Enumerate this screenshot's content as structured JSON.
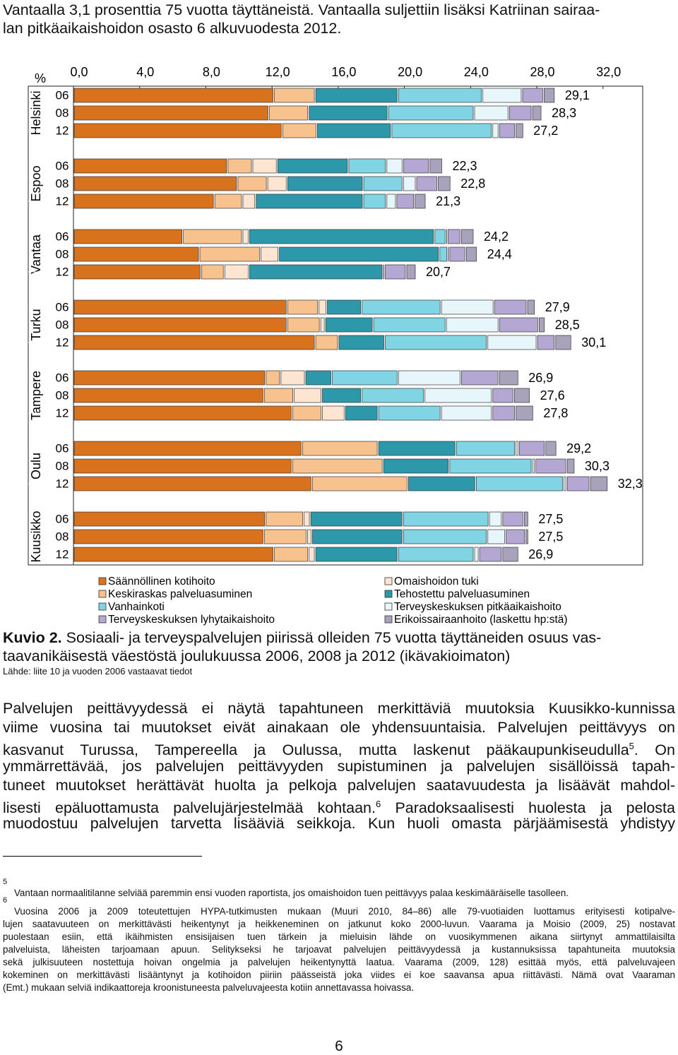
{
  "header": {
    "lines": [
      "Vantaalla 3,1 prosenttia 75 vuotta täyttäneistä. Vantaalla suljettiin lisäksi Katriinan sairaa-",
      "lan pitkäaikaishoidon osasto 6 alkuvuodesta 2012."
    ]
  },
  "chart_data": {
    "type": "bar",
    "orientation": "horizontal",
    "stacked": true,
    "x_label": "%",
    "xlim": [
      0,
      34.4
    ],
    "xticks": [
      {
        "value": 0,
        "label": "0,0"
      },
      {
        "value": 4,
        "label": "4,0"
      },
      {
        "value": 8,
        "label": "8,0"
      },
      {
        "value": 12,
        "label": "12,0"
      },
      {
        "value": 16,
        "label": "16,0"
      },
      {
        "value": 20,
        "label": "20,0"
      },
      {
        "value": 24,
        "label": "24,0"
      },
      {
        "value": 28,
        "label": "28,0"
      },
      {
        "value": 32,
        "label": "32,0"
      }
    ],
    "groups": [
      "Helsinki",
      "Espoo",
      "Vantaa",
      "Turku",
      "Tampere",
      "Oulu",
      "Kuusikko"
    ],
    "categories": [
      "06",
      "08",
      "12",
      "06",
      "08",
      "12",
      "06",
      "08",
      "12",
      "06",
      "08",
      "12",
      "06",
      "08",
      "12",
      "06",
      "08",
      "12",
      "06",
      "08",
      "12"
    ],
    "series": [
      {
        "name": "Säännöllinen kotihoito",
        "color": "#d8721d",
        "values": [
          12.1,
          11.8,
          12.6,
          9.3,
          9.9,
          8.5,
          6.6,
          7.6,
          7.7,
          12.9,
          12.9,
          14.6,
          11.6,
          11.5,
          13.2,
          13.8,
          13.2,
          14.4,
          11.6,
          11.5,
          12.1
        ]
      },
      {
        "name": "Keskiraskas palveluasuminen",
        "color": "#f8c28e",
        "values": [
          2.5,
          2.4,
          2.1,
          1.5,
          1.8,
          1.7,
          3.6,
          3.7,
          1.4,
          1.9,
          2.0,
          1.4,
          0.9,
          1.8,
          1.8,
          4.6,
          5.5,
          5.8,
          2.3,
          2.6,
          2.1
        ]
      },
      {
        "name": "Omaishoidon tuki",
        "color": "#fde5d2",
        "values": [
          0,
          0,
          0,
          1.5,
          1.2,
          0.8,
          0.4,
          1.1,
          1.5,
          0.5,
          0.3,
          0,
          1.5,
          1.7,
          1.4,
          0,
          0,
          0,
          0.4,
          0.3,
          0.4
        ]
      },
      {
        "name": "Tehostettu palveluasuminen",
        "color": "#2e98ab",
        "values": [
          5.0,
          4.8,
          4.5,
          4.3,
          4.6,
          6.5,
          11.2,
          9.7,
          8.1,
          2.1,
          2.9,
          2.8,
          1.6,
          2.4,
          2.0,
          4.7,
          4.0,
          4.1,
          5.6,
          5.5,
          5.0
        ]
      },
      {
        "name": "Vanhainkoti",
        "color": "#80d4e4",
        "values": [
          5.1,
          5.2,
          6.1,
          2.3,
          2.4,
          1.4,
          0.7,
          0.5,
          0.1,
          4.8,
          4.4,
          6.2,
          4.0,
          3.8,
          3.8,
          3.6,
          5.0,
          5.3,
          5.2,
          5.1,
          4.6
        ]
      },
      {
        "name": "Terveyskeskuksen pitkäaikaishoito",
        "color": "#e6f6fa",
        "values": [
          2.4,
          2.1,
          0.4,
          1.0,
          0.8,
          0.6,
          0.1,
          0.1,
          0,
          3.2,
          3.2,
          3.0,
          3.8,
          4.1,
          3.1,
          0.2,
          0.2,
          0.2,
          0.8,
          1.1,
          0.3
        ]
      },
      {
        "name": "Terveyskeskuksen lyhytaikaishoito",
        "color": "#b4a7d4",
        "values": [
          1.3,
          1.4,
          1.0,
          1.6,
          1.3,
          1.1,
          0.8,
          1.0,
          1.3,
          2.0,
          2.4,
          1.1,
          2.3,
          1.3,
          1.4,
          1.6,
          1.9,
          1.4,
          1.3,
          1.2,
          1.4
        ]
      },
      {
        "name": "Erikoissairaanhoito (laskettu hp:stä)",
        "color": "#a8a2bb",
        "values": [
          0.7,
          0.6,
          0.5,
          0.8,
          0.8,
          0.7,
          0.8,
          0.7,
          0.6,
          0.5,
          0.4,
          1.0,
          1.2,
          1.0,
          1.1,
          0.7,
          0.5,
          1.1,
          0.3,
          0.2,
          1.0
        ]
      }
    ],
    "totals": {
      "values": [
        29.1,
        28.3,
        27.2,
        22.3,
        22.8,
        21.3,
        24.2,
        24.4,
        20.7,
        27.9,
        28.5,
        30.1,
        26.9,
        27.6,
        27.8,
        29.2,
        30.3,
        32.3,
        27.5,
        27.5,
        26.9
      ],
      "value_labels": [
        "29,1",
        "28,3",
        "27,2",
        "22,3",
        "22,8",
        "21,3",
        "24,2",
        "24,4",
        "20,7",
        "27,9",
        "28,5",
        "30,1",
        "26,9",
        "27,6",
        "27,8",
        "29,2",
        "30,3",
        "32,3",
        "27,5",
        "27,5",
        "26,9"
      ]
    }
  },
  "caption": {
    "label": "Kuvio 2.",
    "lines": [
      " Sosiaali- ja terveyspalvelujen piirissä olleiden 75 vuotta täyttäneiden osuus vas-",
      "taavanikäisestä väestöstä joulukuussa 2006, 2008 ja 2012 (ikävakioimaton)"
    ],
    "source": "Lähde: liite 10 ja vuoden 2006 vastaavat tiedot"
  },
  "paragraph": [
    {
      "text": "Palvelujen peittävyydessä ei näytä tapahtuneen merkittäviä muutoksia Kuusikko-kunnissa"
    },
    {
      "text": "viime vuosina tai muutokset eivät ainakaan ole yhdensuuntaisia. Palvelujen peittävyys on"
    },
    {
      "text": "kasvanut Turussa, Tampereella ja Oulussa, mutta laskenut pääkaupunkiseudulla",
      "sup": "5",
      "after": ". On"
    },
    {
      "text": "ymmärrettävää, jos palvelujen peittävyyden supistuminen ja palvelujen sisällöissä tapah-"
    },
    {
      "text": "tuneet muutokset herättävät huolta ja pelkoja palvelujen saatavuudesta ja lisäävät mahdol-"
    },
    {
      "text": "lisesti epäluottamusta palvelujärjestelmää kohtaan.",
      "sup": "6",
      "after": " Paradoksaalisesti huolesta ja pelosta"
    },
    {
      "text": "muodostuu palvelujen tarvetta lisääviä seikkoja. Kun huoli omasta pärjäämisestä yhdistyy"
    }
  ],
  "footnotes": [
    {
      "marker": "5",
      "lines": [
        "Vantaan normaalitilanne selviää paremmin ensi vuoden raportista, jos omaishoidon tuen peittävyys palaa keskimääräiselle tasolleen."
      ]
    },
    {
      "marker": "6",
      "lines": [
        "Vuosina 2006 ja 2009 toteutettujen HYPA-tutkimusten mukaan (Muuri 2010, 84–86) alle 79-vuotiaiden luottamus erityisesti kotipalve-",
        "lujen saatavuuteen on merkittävästi heikentynyt ja heikkeneminen on jatkunut koko 2000-luvun. Vaarama ja Moisio (2009, 25) nostavat",
        "puolestaan esiin, että ikäihmisten ensisijaisen tuen tärkein ja mieluisin lähde on vuosikymmenen aikana siirtynyt ammattilaisilta",
        "palveluista, läheisten tarjoamaan apuun. Selitykseksi he tarjoavat palvelujen peittävyydessä ja kustannuksissa tapahtuneita muutoksia",
        "sekä julkisuuteen nostettuja hoivan ongelmia ja palvelujen heikentynyttä laatua. Vaarama (2009, 128) esittää myös, että palveluvajeen",
        "kokeminen on merkittävästi lisääntynyt ja kotihoidon piiriin päässeistä joka viides ei koe saavansa apua riittävästi. Nämä ovat Vaaraman",
        "(Emt.) mukaan selviä indikaattoreja kroonistuneesta palveluvajeesta kotiin annettavassa hoivassa."
      ]
    }
  ],
  "page_number": "6"
}
